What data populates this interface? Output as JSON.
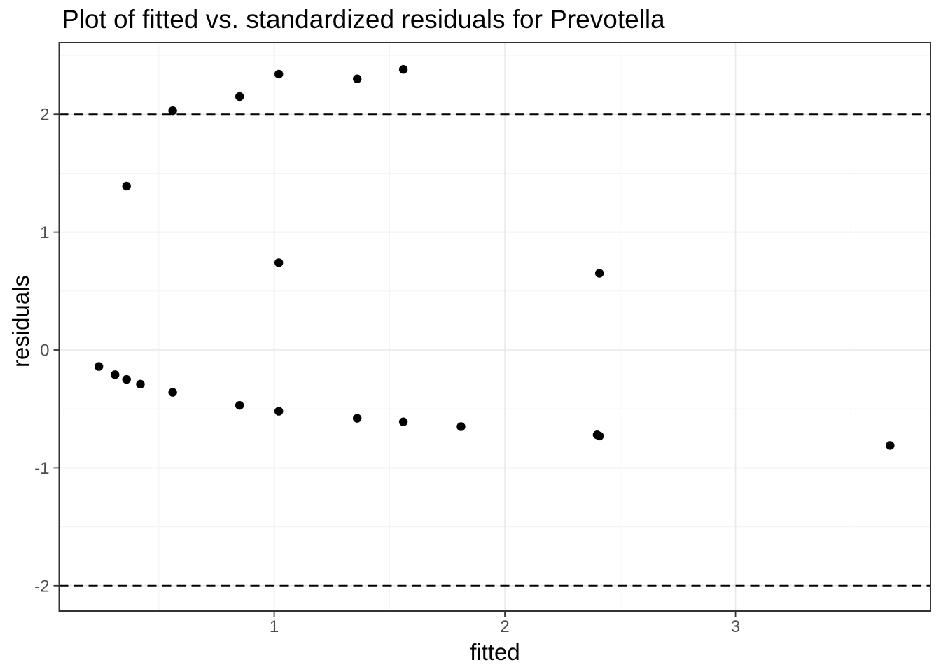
{
  "page": {
    "background_color": "#ffffff"
  },
  "chart_data": {
    "type": "scatter",
    "title": "Plot of fitted vs. standardized residuals for Prevotella",
    "xlabel": "fitted",
    "ylabel": "residuals",
    "xlim": [
      0.068,
      3.845
    ],
    "ylim": [
      -2.215,
      2.607
    ],
    "x_ticks": [
      1,
      2,
      3
    ],
    "y_ticks": [
      -2,
      -1,
      0,
      1,
      2
    ],
    "x_minor_gridlines": [
      0.5,
      1.5,
      2.5,
      3.5
    ],
    "y_minor_gridlines": [
      -1.5,
      -0.5,
      0.5,
      1.5,
      2.5
    ],
    "reference_lines_y": [
      2,
      -2
    ],
    "reference_line_style": "dashed",
    "grid": "major and minor, light gray on white (theme_bw)",
    "legend": "none",
    "points": [
      [
        0.24,
        -0.14
      ],
      [
        0.31,
        -0.21
      ],
      [
        0.36,
        -0.25
      ],
      [
        0.36,
        1.39
      ],
      [
        0.42,
        -0.29
      ],
      [
        0.56,
        -0.36
      ],
      [
        0.56,
        2.03
      ],
      [
        0.85,
        -0.47
      ],
      [
        0.85,
        2.15
      ],
      [
        1.02,
        -0.52
      ],
      [
        1.02,
        0.74
      ],
      [
        1.02,
        2.34
      ],
      [
        1.36,
        -0.58
      ],
      [
        1.36,
        2.3
      ],
      [
        1.56,
        -0.61
      ],
      [
        1.56,
        2.38
      ],
      [
        1.81,
        -0.65
      ],
      [
        2.4,
        -0.72
      ],
      [
        2.41,
        -0.73
      ],
      [
        2.41,
        0.65
      ],
      [
        3.67,
        -0.81
      ]
    ],
    "colors": {
      "point": "#000000",
      "reference_line": "#000000",
      "grid_major": "#e9e9e9",
      "grid_minor": "#f4f4f4",
      "panel_border": "#333333",
      "tick_mark": "#333333",
      "tick_label": "#4d4d4d",
      "title_text": "#000000",
      "axis_title_text": "#000000",
      "panel_background": "#ffffff"
    }
  }
}
